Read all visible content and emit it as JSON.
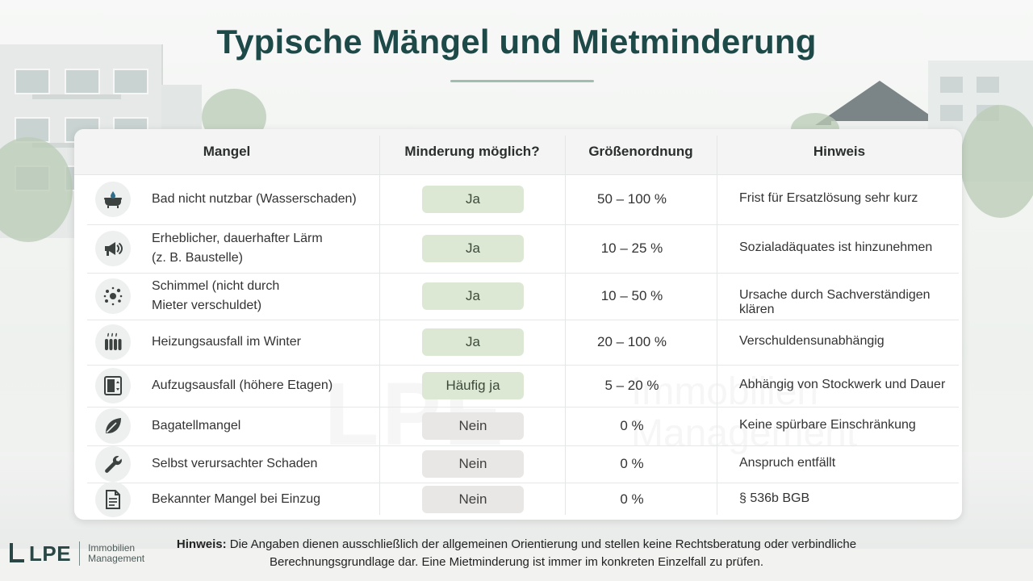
{
  "title": "Typische Mängel und Mietminderung",
  "columns": {
    "mangel": "Mangel",
    "minderung": "Minderung möglich?",
    "groesse": "Größenordnung",
    "hinweis": "Hinweis"
  },
  "rows": [
    {
      "icon": "bathtub-icon",
      "mangel_l1": "Bad nicht nutzbar  (Wasserschaden)",
      "mangel_l2": "",
      "minderung": "Ja",
      "status": "ja",
      "groesse": "50 – 100 %",
      "hinweis": "Frist für Ersatzlösung sehr kurz"
    },
    {
      "icon": "megaphone-icon",
      "mangel_l1": "Erheblicher, dauerhafter Lärm",
      "mangel_l2": "(z. B. Baustelle)",
      "minderung": "Ja",
      "status": "ja",
      "groesse": "10 – 25 %",
      "hinweis": "Sozialadäquates ist hinzunehmen"
    },
    {
      "icon": "mold-icon",
      "mangel_l1": "Schimmel (nicht durch",
      "mangel_l2": "Mieter verschuldet)",
      "minderung": "Ja",
      "status": "ja",
      "groesse": "10 – 50 %",
      "hinweis": "Ursache durch Sachverständigen klären"
    },
    {
      "icon": "radiator-icon",
      "mangel_l1": "Heizungsausfall im Winter",
      "mangel_l2": "",
      "minderung": "Ja",
      "status": "ja",
      "groesse": "20 – 100 %",
      "hinweis": "Verschuldensunabhängig"
    },
    {
      "icon": "elevator-icon",
      "mangel_l1": "Aufzugsausfall (höhere Etagen)",
      "mangel_l2": "",
      "minderung": "Häufig ja",
      "status": "ja",
      "groesse": "5 – 20 %",
      "hinweis": "Abhängig von Stockwerk und Dauer"
    },
    {
      "icon": "leaf-icon",
      "mangel_l1": "Bagatellmangel",
      "mangel_l2": "",
      "minderung": "Nein",
      "status": "nein",
      "groesse": "0 %",
      "hinweis": "Keine spürbare Einschränkung"
    },
    {
      "icon": "wrench-icon",
      "mangel_l1": "Selbst verursachter Schaden",
      "mangel_l2": "",
      "minderung": "Nein",
      "status": "nein",
      "groesse": "0 %",
      "hinweis": "Anspruch entfällt"
    },
    {
      "icon": "document-icon",
      "mangel_l1": "Bekannter Mangel bei Einzug",
      "mangel_l2": "",
      "minderung": "Nein",
      "status": "nein",
      "groesse": "0 %",
      "hinweis": "§ 536b BGB"
    }
  ],
  "logo": {
    "mark": "LPE",
    "sub_l1": "Immobilien",
    "sub_l2": "Management"
  },
  "note": {
    "label": "Hinweis:",
    "text": " Die Angaben dienen ausschließlich der allgemeinen Orientierung und stellen keine Rechtsberatung oder verbindliche Berechnungsgrundlage dar. Eine Mietminderung ist immer im konkreten Einzelfall zu prüfen."
  },
  "colors": {
    "title": "#1d4a48",
    "pill_ja": "#dde8d4",
    "pill_nein": "#e9e7e5"
  }
}
